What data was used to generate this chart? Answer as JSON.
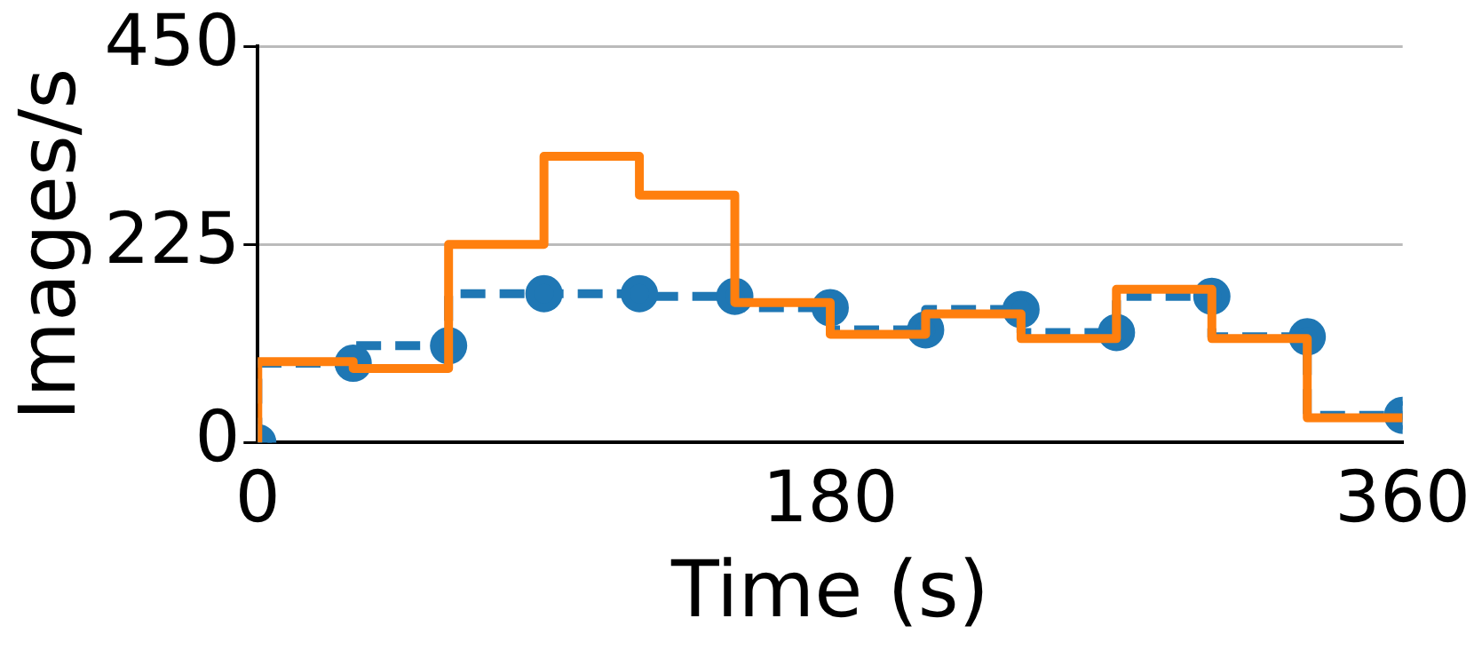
{
  "chart_data": {
    "type": "step",
    "xlabel": "Time (s)",
    "ylabel": "Images/s",
    "x": [
      0,
      30,
      60,
      90,
      120,
      150,
      180,
      210,
      240,
      270,
      300,
      330,
      360
    ],
    "series": [
      {
        "color": "#1f77b4",
        "marker": "circle",
        "line_style": "dashed",
        "values": [
          0,
          90,
          110,
          169,
          169,
          166,
          153,
          128,
          151,
          125,
          166,
          120,
          31
        ]
      },
      {
        "color": "#ff7f0e",
        "marker": "none",
        "line_style": "solid",
        "values": [
          0,
          92,
          84,
          225,
          325,
          281,
          159,
          123,
          146,
          118,
          174,
          118,
          28
        ]
      }
    ],
    "xlim": [
      0,
      360
    ],
    "xticks": [
      0,
      180,
      360
    ],
    "ylim": [
      0,
      450
    ],
    "yticks": [
      0,
      225,
      450
    ],
    "grid": "y",
    "legend": false
  }
}
